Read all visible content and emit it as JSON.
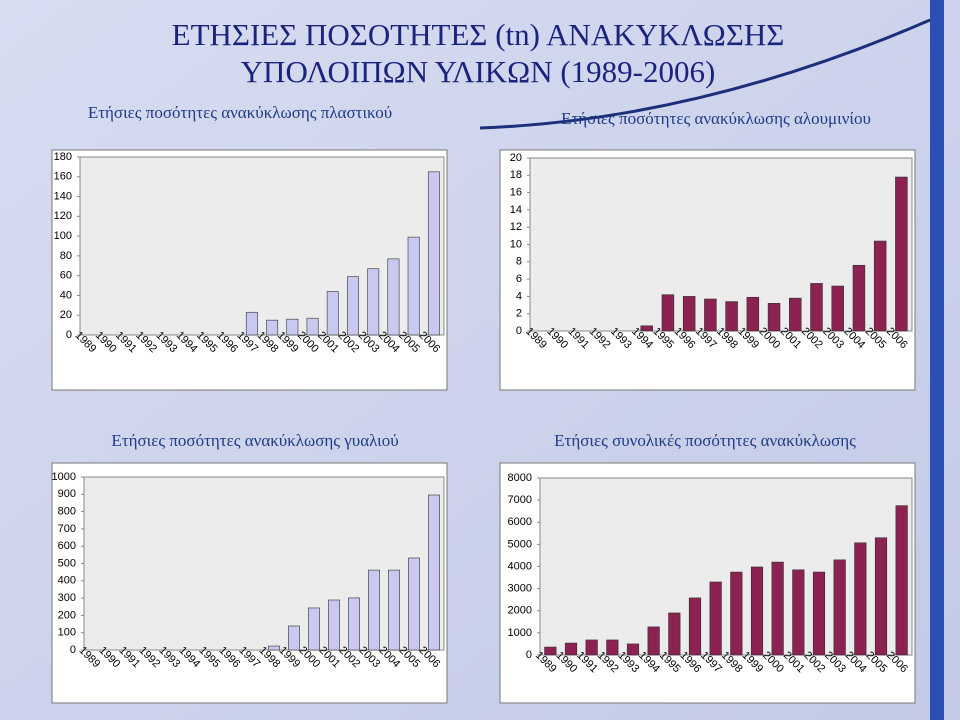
{
  "slide": {
    "title": [
      "ΕΤΗΣΙΕΣ ΠΟΣΟΤΗΤΕΣ (tn) ΑΝΑΚΥΚΛΩΣΗΣ",
      "ΥΠΟΛΟΙΠΩΝ ΥΛΙΚΩΝ (1989-2006)"
    ]
  },
  "chart_data": [
    {
      "type": "bar",
      "title": "Ετήσιες ποσότητες ανακύκλωσης πλαστικού",
      "categories": [
        "1989",
        "1990",
        "1991",
        "1992",
        "1993",
        "1994",
        "1995",
        "1996",
        "1997",
        "1998",
        "1999",
        "2000",
        "2001",
        "2002",
        "2003",
        "2004",
        "2005",
        "2006"
      ],
      "values": [
        0,
        0,
        0,
        0,
        0,
        0,
        0,
        0,
        23,
        15,
        16,
        17,
        44,
        59,
        67,
        77,
        99,
        165
      ],
      "color": "#c8c8f0",
      "ylim": [
        0,
        180
      ],
      "yticks": [
        0,
        20,
        40,
        60,
        80,
        100,
        120,
        140,
        160,
        180
      ]
    },
    {
      "type": "bar",
      "title": "Ετήσιες ποσότητες ανακύκλωσης αλουμινίου",
      "categories": [
        "1989",
        "1990",
        "1991",
        "1992",
        "1993",
        "1994",
        "1995",
        "1996",
        "1997",
        "1998",
        "1999",
        "2000",
        "2001",
        "2002",
        "2003",
        "2004",
        "2005",
        "2006"
      ],
      "values": [
        0,
        0,
        0,
        0,
        0,
        0.6,
        4.2,
        4.0,
        3.7,
        3.4,
        3.9,
        3.2,
        3.8,
        5.5,
        5.2,
        7.6,
        10.4,
        17.8
      ],
      "color": "#8b2252",
      "ylim": [
        0,
        20
      ],
      "yticks": [
        0,
        2,
        4,
        6,
        8,
        10,
        12,
        14,
        16,
        18,
        20
      ]
    },
    {
      "type": "bar",
      "title": "Ετήσιες ποσότητες ανακύκλωσης γυαλιού",
      "categories": [
        "1989",
        "1990",
        "1991",
        "1992",
        "1993",
        "1994",
        "1995",
        "1996",
        "1997",
        "1998",
        "1999",
        "2000",
        "2001",
        "2002",
        "2003",
        "2004",
        "2005",
        "2006"
      ],
      "values": [
        0,
        0,
        0,
        0,
        0,
        0,
        0,
        0,
        0,
        23,
        139,
        243,
        289,
        301,
        462,
        462,
        532,
        896
      ],
      "color": "#c8c8f0",
      "ylim": [
        0,
        1000
      ],
      "yticks": [
        0,
        100,
        200,
        300,
        400,
        500,
        600,
        700,
        800,
        900,
        1000
      ]
    },
    {
      "type": "bar",
      "title": "Ετήσιες συνολικές ποσότητες ανακύκλωσης",
      "categories": [
        "1989",
        "1990",
        "1991",
        "1992",
        "1993",
        "1994",
        "1995",
        "1996",
        "1997",
        "1998",
        "1999",
        "2000",
        "2001",
        "2002",
        "2003",
        "2004",
        "2005",
        "2006"
      ],
      "values": [
        360,
        540,
        680,
        680,
        500,
        1270,
        1900,
        2580,
        3300,
        3750,
        3980,
        4200,
        3850,
        3750,
        4300,
        5070,
        5300,
        6750
      ],
      "color": "#8b2252",
      "ylim": [
        0,
        8000
      ],
      "yticks": [
        0,
        1000,
        2000,
        3000,
        4000,
        5000,
        6000,
        7000,
        8000
      ]
    }
  ]
}
